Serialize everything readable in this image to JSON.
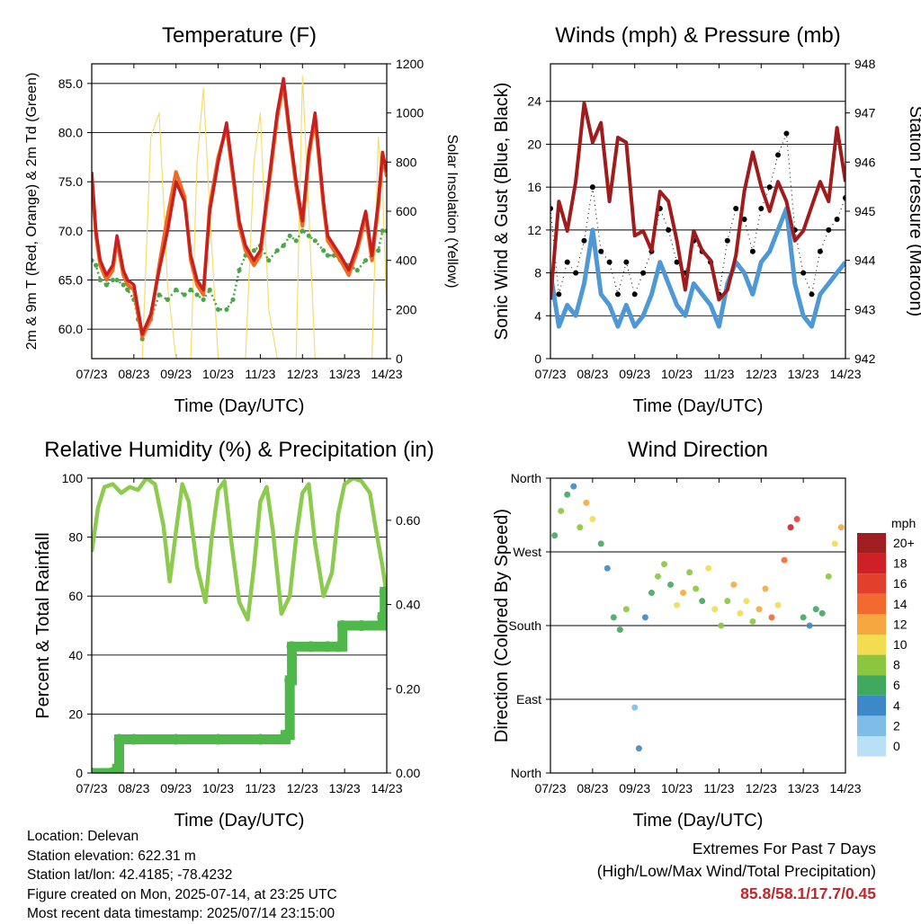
{
  "footer": {
    "location": "Location: Delevan",
    "elevation": "Station elevation: 622.31 m",
    "latlon": "Station lat/lon: 42.4185; -78.4232",
    "created": "Figure created on Mon, 2025-07-14, at 23:25 UTC",
    "recent": "Most recent data timestamp: 2025/07/14 23:15:00"
  },
  "extremes": {
    "heading": "Extremes For Past 7 Days",
    "sub": "(High/Low/Max Wind/Total Precipitation)",
    "values": "85.8/58.1/17.7/0.45"
  },
  "colors": {
    "temp2m": "#c8201f",
    "temp9m": "#f26a22",
    "dewpoint": "#4aa84a",
    "solar": "#f6dd6b",
    "wind": "#4f98d6",
    "gust": "#000000",
    "pressure": "#a01c1c",
    "rh": "#8dcb4e",
    "precip": "#4fb84a"
  },
  "chart_data": [
    {
      "type": "line",
      "title": "Temperature (F)",
      "xlabel": "Time (Day/UTC)",
      "ylabel": "2m & 9m T (Red, Orange) & 2m Td (Green)",
      "ylabel_right": "Solar Insolation (Yellow)",
      "xlim": [
        0,
        7
      ],
      "ylim": [
        57,
        87
      ],
      "ylim_right": [
        0,
        1200
      ],
      "xticks": [
        "07/23",
        "08/23",
        "09/23",
        "10/23",
        "11/23",
        "12/23",
        "13/23",
        "14/23"
      ],
      "yticks": [
        "60.0",
        "65.0",
        "70.0",
        "75.0",
        "80.0",
        "85.0"
      ],
      "yticks_right": [
        "0",
        "200",
        "400",
        "600",
        "800",
        "1000",
        "1200"
      ],
      "grid": "horizontal",
      "x": [
        0,
        0.1,
        0.2,
        0.35,
        0.5,
        0.6,
        0.75,
        0.85,
        1,
        1.1,
        1.2,
        1.4,
        1.6,
        1.8,
        2,
        2.2,
        2.35,
        2.5,
        2.65,
        2.8,
        3,
        3.2,
        3.35,
        3.5,
        3.65,
        3.85,
        4,
        4.2,
        4.4,
        4.55,
        4.7,
        4.85,
        5,
        5.15,
        5.3,
        5.5,
        5.6,
        5.75,
        5.9,
        6.1,
        6.3,
        6.5,
        6.65,
        6.8,
        6.9,
        7
      ],
      "series": [
        {
          "key": "temp2m",
          "values": [
            76,
            70,
            67,
            65.5,
            66.5,
            69.5,
            66,
            65,
            64.5,
            62,
            59.5,
            61.5,
            66,
            70,
            75,
            73,
            67.5,
            65,
            64,
            72,
            77,
            81,
            76,
            71,
            68.5,
            67,
            68,
            75,
            82,
            85.5,
            80,
            75,
            71,
            78,
            82,
            73,
            69.5,
            68.5,
            67.5,
            66,
            68.5,
            72,
            67.5,
            73,
            78,
            76
          ]
        },
        {
          "key": "temp9m",
          "values": [
            75.5,
            69.5,
            66.5,
            65,
            66,
            69,
            65.5,
            64.5,
            64,
            61.5,
            59.2,
            61,
            66.5,
            71.5,
            76,
            73.5,
            67,
            64.5,
            63.5,
            72.5,
            77.5,
            80.5,
            75.5,
            70.5,
            68,
            66.5,
            67.5,
            74.5,
            81.5,
            85,
            79.5,
            74.5,
            70.5,
            77.5,
            81.5,
            72.5,
            69,
            68,
            67,
            65.5,
            68,
            71.5,
            67,
            72.5,
            77.5,
            75.5
          ]
        },
        {
          "key": "dewpoint",
          "values": [
            67,
            66.5,
            65,
            64.5,
            65,
            65,
            64.5,
            64,
            63,
            61,
            59,
            61,
            63.5,
            63,
            64,
            63.5,
            64,
            63.5,
            63,
            64,
            62,
            62,
            63,
            66,
            67.5,
            68,
            68.5,
            67,
            68,
            68.5,
            69.5,
            69,
            70,
            69.5,
            69,
            68,
            67.5,
            67.5,
            67,
            66.5,
            66,
            67,
            67.5,
            68,
            70,
            70
          ]
        },
        {
          "key": "solar",
          "axis": "right",
          "values": [
            0,
            0,
            0,
            0,
            0,
            0,
            0,
            0,
            0,
            0,
            0,
            900,
            1000,
            300,
            0,
            0,
            0,
            800,
            1100,
            600,
            0,
            0,
            0,
            0,
            0,
            800,
            1000,
            200,
            0,
            0,
            0,
            0,
            1150,
            600,
            0,
            0,
            0,
            0,
            0,
            0,
            0,
            0,
            0,
            900,
            700,
            200
          ]
        }
      ]
    },
    {
      "type": "line",
      "title": "Winds (mph) & Pressure (mb)",
      "xlabel": "Time (Day/UTC)",
      "ylabel": "Sonic Wind & Gust (Blue, Black)",
      "ylabel_right": "Station Pressure (Maroon)",
      "xlim": [
        0,
        7
      ],
      "ylim": [
        0,
        27.5
      ],
      "ylim_right": [
        942,
        948
      ],
      "xticks": [
        "07/23",
        "08/23",
        "09/23",
        "10/23",
        "11/23",
        "12/23",
        "13/23",
        "14/23"
      ],
      "yticks": [
        "0",
        "4",
        "8",
        "12",
        "16",
        "20",
        "24"
      ],
      "yticks_right": [
        "942",
        "943",
        "944",
        "945",
        "946",
        "947",
        "948"
      ],
      "grid": "horizontal",
      "x": [
        0,
        0.2,
        0.4,
        0.6,
        0.8,
        1,
        1.2,
        1.4,
        1.6,
        1.8,
        2,
        2.2,
        2.4,
        2.6,
        2.8,
        3,
        3.2,
        3.4,
        3.6,
        3.8,
        4,
        4.2,
        4.4,
        4.6,
        4.8,
        5,
        5.2,
        5.4,
        5.6,
        5.8,
        6,
        6.2,
        6.4,
        6.6,
        6.8,
        7
      ],
      "series": [
        {
          "key": "wind",
          "values": [
            8,
            3,
            5,
            4,
            7,
            12,
            6,
            5,
            3,
            5,
            3,
            4,
            6,
            9,
            7,
            5,
            4,
            7,
            6,
            5,
            3,
            7,
            9,
            8,
            6,
            9,
            10,
            12,
            14,
            7,
            4,
            3,
            6,
            7,
            8,
            9
          ]
        },
        {
          "key": "gust",
          "values": [
            14,
            6,
            9,
            8,
            11,
            16,
            10,
            9,
            6,
            9,
            6,
            8,
            10,
            14,
            12,
            9,
            8,
            11,
            10,
            9,
            6,
            11,
            14,
            13,
            10,
            14,
            16,
            19,
            21,
            12,
            8,
            6,
            10,
            12,
            13,
            15
          ]
        },
        {
          "key": "pressure",
          "axis": "right",
          "values": [
            943.2,
            945.2,
            944.6,
            945.6,
            947.2,
            946.4,
            946.8,
            945.2,
            946.5,
            946.4,
            944.5,
            944.6,
            944.2,
            945.4,
            945.2,
            944.4,
            943.4,
            944.6,
            944.2,
            944.0,
            943.2,
            943.4,
            944.1,
            945.4,
            946.2,
            945.5,
            945.0,
            945.6,
            945.2,
            944.4,
            944.6,
            945.1,
            945.6,
            945.2,
            946.7,
            945.6
          ]
        }
      ]
    },
    {
      "type": "line",
      "title": "Relative Humidity (%) & Precipitation (in)",
      "xlabel": "Time (Day/UTC)",
      "ylabel": "Percent & Total Rainfall",
      "xlim": [
        0,
        7
      ],
      "ylim": [
        0,
        100
      ],
      "ylim_right": [
        0,
        0.7
      ],
      "xticks": [
        "07/23",
        "08/23",
        "09/23",
        "10/23",
        "11/23",
        "12/23",
        "13/23",
        "14/23"
      ],
      "yticks": [
        "0",
        "20",
        "40",
        "60",
        "80",
        "100"
      ],
      "yticks_right": [
        "0.00",
        "0.20",
        "0.40",
        "0.60"
      ],
      "grid": "horizontal",
      "x": [
        0,
        0.15,
        0.3,
        0.5,
        0.7,
        0.9,
        1.1,
        1.3,
        1.5,
        1.7,
        1.85,
        2,
        2.15,
        2.3,
        2.5,
        2.7,
        2.85,
        3,
        3.15,
        3.3,
        3.5,
        3.7,
        3.85,
        4,
        4.15,
        4.3,
        4.5,
        4.7,
        4.85,
        5,
        5.15,
        5.3,
        5.5,
        5.7,
        5.85,
        6,
        6.2,
        6.4,
        6.6,
        6.75,
        6.9,
        7
      ],
      "series": [
        {
          "key": "rh",
          "values": [
            75,
            90,
            97,
            98,
            95,
            97,
            96,
            100,
            98,
            84,
            65,
            82,
            98,
            92,
            70,
            58,
            80,
            96,
            99,
            80,
            58,
            52,
            70,
            92,
            97,
            82,
            54,
            60,
            80,
            95,
            98,
            78,
            60,
            68,
            88,
            98,
            100,
            99,
            95,
            82,
            70,
            60
          ]
        },
        {
          "key": "precip",
          "axis": "right",
          "x": [
            0,
            0.45,
            0.6,
            0.65,
            1,
            2,
            3,
            4,
            4.6,
            4.7,
            4.75,
            5.2,
            5.6,
            5.85,
            5.95,
            6.4,
            6.9,
            6.95,
            7
          ],
          "values": [
            0,
            0,
            0.01,
            0.08,
            0.08,
            0.08,
            0.08,
            0.08,
            0.09,
            0.22,
            0.3,
            0.3,
            0.3,
            0.3,
            0.35,
            0.35,
            0.37,
            0.43,
            0.43
          ]
        }
      ]
    },
    {
      "type": "scatter",
      "title": "Wind Direction",
      "xlabel": "Time (Day/UTC)",
      "ylabel": "Direction (Colored By Speed)",
      "xlim": [
        0,
        7
      ],
      "ylim": [
        0,
        360
      ],
      "xticks": [
        "07/23",
        "08/23",
        "09/23",
        "10/23",
        "11/23",
        "12/23",
        "13/23",
        "14/23"
      ],
      "yticks": [
        "North",
        "East",
        "South",
        "West",
        "North"
      ],
      "grid": "horizontal",
      "x": [
        0.1,
        0.25,
        0.4,
        0.55,
        0.7,
        0.85,
        1.0,
        1.2,
        1.35,
        1.5,
        1.65,
        1.8,
        2.0,
        2.1,
        2.25,
        2.4,
        2.55,
        2.7,
        2.85,
        3.0,
        3.15,
        3.3,
        3.45,
        3.6,
        3.75,
        3.9,
        4.05,
        4.2,
        4.35,
        4.5,
        4.65,
        4.8,
        4.95,
        5.1,
        5.25,
        5.4,
        5.55,
        5.7,
        5.85,
        6.0,
        6.15,
        6.3,
        6.45,
        6.6,
        6.75,
        6.9
      ],
      "y": [
        290,
        320,
        340,
        350,
        300,
        330,
        310,
        280,
        250,
        190,
        175,
        200,
        80,
        30,
        190,
        220,
        240,
        255,
        230,
        205,
        220,
        245,
        225,
        210,
        250,
        200,
        180,
        210,
        230,
        195,
        210,
        185,
        200,
        225,
        190,
        205,
        260,
        300,
        310,
        190,
        180,
        200,
        195,
        240,
        280,
        300
      ],
      "speed": [
        6,
        8,
        5,
        4,
        7,
        11,
        9,
        5,
        4,
        6,
        5,
        8,
        2,
        3,
        4,
        6,
        7,
        8,
        5,
        9,
        11,
        8,
        7,
        6,
        9,
        10,
        7,
        8,
        12,
        10,
        9,
        7,
        11,
        12,
        13,
        10,
        14,
        18,
        16,
        5,
        4,
        6,
        5,
        8,
        10,
        12
      ],
      "colorbar": {
        "title": "mph",
        "labels": [
          "20+",
          "18",
          "16",
          "14",
          "12",
          "10",
          "8",
          "6",
          "4",
          "2",
          "0"
        ],
        "colors": [
          "#a01d20",
          "#cf2026",
          "#e43f2d",
          "#f26a2d",
          "#f8a640",
          "#f2dc4f",
          "#8cc63f",
          "#41a85f",
          "#3d88c6",
          "#7fbde8",
          "#b9e0f5"
        ]
      }
    }
  ]
}
